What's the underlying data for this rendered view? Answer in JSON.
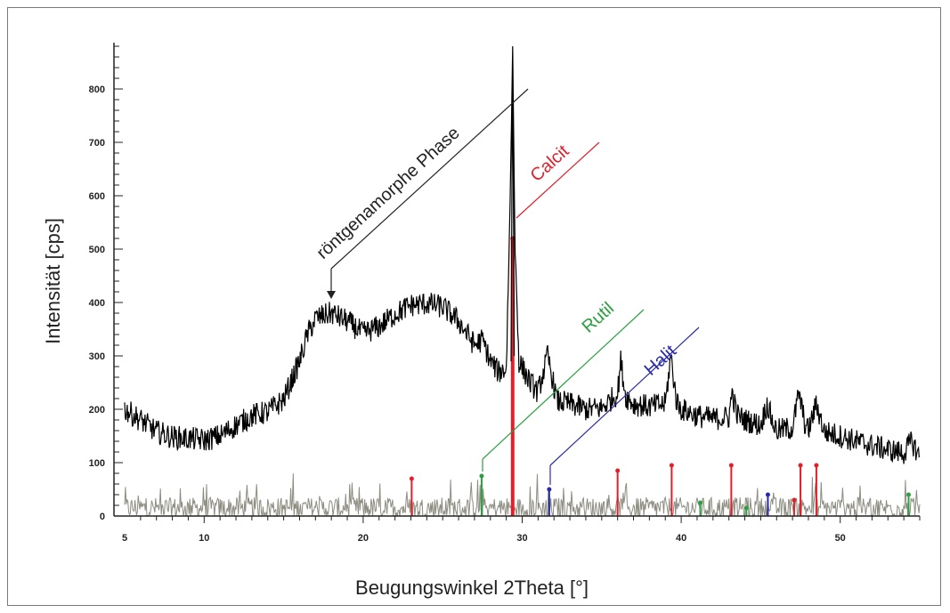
{
  "chart_data": {
    "type": "line",
    "xlabel": "Beugungswinkel 2Theta    [°]",
    "ylabel": "Intensität    [cps]",
    "xlim": [
      5,
      55
    ],
    "ylim": [
      0,
      880
    ],
    "x_ticks": [
      5,
      10,
      20,
      30,
      40,
      50
    ],
    "y_ticks": [
      0,
      100,
      200,
      300,
      400,
      500,
      600,
      700,
      800
    ],
    "grid": false,
    "colors": {
      "pattern": "#000000",
      "difference": "#8c8c80",
      "calcit": "#e0202a",
      "rutil": "#2ca040",
      "halit": "#2a2aa8",
      "annotation": "#222222"
    },
    "series": [
      {
        "values": [
          [
            5,
            200
          ],
          [
            6,
            180
          ],
          [
            7,
            158
          ],
          [
            8,
            148
          ],
          [
            9,
            145
          ],
          [
            10,
            142
          ],
          [
            11,
            150
          ],
          [
            12,
            170
          ],
          [
            13,
            188
          ],
          [
            14,
            195
          ],
          [
            15,
            218
          ],
          [
            16,
            290
          ],
          [
            16.5,
            340
          ],
          [
            17,
            370
          ],
          [
            18,
            380
          ],
          [
            19,
            365
          ],
          [
            20,
            342
          ],
          [
            21,
            355
          ],
          [
            22,
            378
          ],
          [
            23,
            395
          ],
          [
            24,
            398
          ],
          [
            25,
            392
          ],
          [
            26,
            365
          ],
          [
            27,
            320
          ],
          [
            27.5,
            330
          ],
          [
            28,
            290
          ],
          [
            28.5,
            270
          ],
          [
            29,
            275
          ],
          [
            29.25,
            600
          ],
          [
            29.4,
            880
          ],
          [
            29.55,
            500
          ],
          [
            29.8,
            290
          ],
          [
            30.5,
            250
          ],
          [
            31,
            232
          ],
          [
            31.6,
            300
          ],
          [
            32.2,
            215
          ],
          [
            33,
            210
          ],
          [
            34,
            200
          ],
          [
            35,
            202
          ],
          [
            36,
            230
          ],
          [
            36.2,
            290
          ],
          [
            36.5,
            225
          ],
          [
            37,
            210
          ],
          [
            38,
            205
          ],
          [
            39,
            210
          ],
          [
            39.35,
            300
          ],
          [
            39.7,
            215
          ],
          [
            40,
            200
          ],
          [
            41,
            188
          ],
          [
            42,
            182
          ],
          [
            43,
            185
          ],
          [
            43.2,
            232
          ],
          [
            43.5,
            190
          ],
          [
            44,
            180
          ],
          [
            45,
            170
          ],
          [
            45.4,
            210
          ],
          [
            45.8,
            172
          ],
          [
            46,
            160
          ],
          [
            47,
            165
          ],
          [
            47.4,
            230
          ],
          [
            47.8,
            170
          ],
          [
            48,
            160
          ],
          [
            48.5,
            210
          ],
          [
            49,
            158
          ],
          [
            50,
            150
          ],
          [
            51,
            140
          ],
          [
            52,
            132
          ],
          [
            53,
            124
          ],
          [
            54,
            118
          ],
          [
            54.5,
            140
          ],
          [
            55,
            110
          ]
        ]
      }
    ],
    "difference_level": 15,
    "reference_peaks": {
      "Calcit": [
        [
          23.05,
          70
        ],
        [
          29.4,
          520
        ],
        [
          36.0,
          85
        ],
        [
          39.4,
          95
        ],
        [
          43.15,
          95
        ],
        [
          47.1,
          30
        ],
        [
          47.5,
          95
        ],
        [
          48.5,
          95
        ]
      ],
      "Rutil": [
        [
          27.45,
          75
        ],
        [
          41.2,
          25
        ],
        [
          44.1,
          15
        ],
        [
          54.3,
          40
        ]
      ],
      "Halit": [
        [
          31.7,
          50
        ],
        [
          45.45,
          40
        ]
      ]
    },
    "annotations": [
      "röntgenamorphe Phase",
      "Calcit",
      "Rutil",
      "Halit"
    ]
  }
}
